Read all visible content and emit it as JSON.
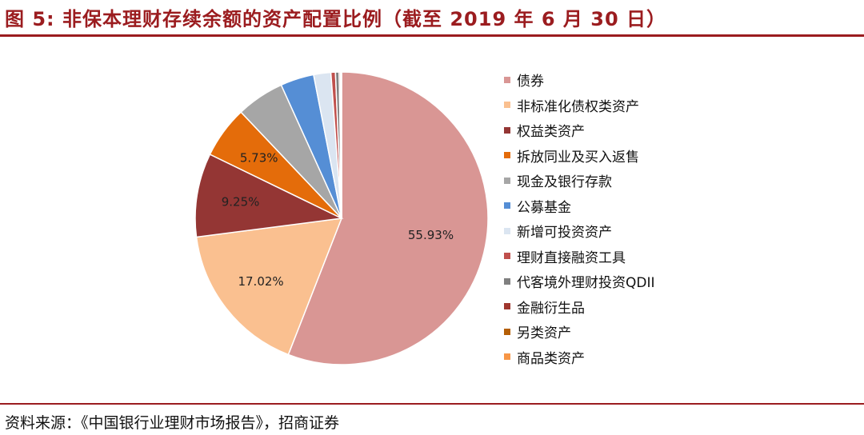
{
  "header": {
    "title": "图 5: 非保本理财存续余额的资产配置比例（截至 2019 年 6 月 30 日）"
  },
  "footer": {
    "source": "资料来源：《中国银行业理财市场报告》，招商证券"
  },
  "chart_data": {
    "type": "pie",
    "title": "图 5: 非保本理财存续余额的资产配置比例（截至 2019 年 6 月 30 日）",
    "legend_position": "right",
    "start_angle_deg": 0,
    "direction": "clockwise",
    "slices": [
      {
        "name": "债券",
        "value": 55.93,
        "label": "55.93%",
        "color": "#d99694"
      },
      {
        "name": "非标准化债权类资产",
        "value": 17.02,
        "label": "17.02%",
        "color": "#fac090"
      },
      {
        "name": "权益类资产",
        "value": 9.25,
        "label": "9.25%",
        "color": "#943634"
      },
      {
        "name": "拆放同业及买入返售",
        "value": 5.73,
        "label": "5.73%",
        "color": "#e46c0a"
      },
      {
        "name": "现金及银行存款",
        "value": 5.3,
        "label": "",
        "color": "#a6a6a6"
      },
      {
        "name": "公募基金",
        "value": 3.7,
        "label": "",
        "color": "#558ed5"
      },
      {
        "name": "新增可投资资产",
        "value": 1.9,
        "label": "",
        "color": "#dbe5f1"
      },
      {
        "name": "理财直接融资工具",
        "value": 0.5,
        "label": "",
        "color": "#c0504d"
      },
      {
        "name": "代客境外理财投资QDII",
        "value": 0.4,
        "label": "",
        "color": "#7f7f7f"
      },
      {
        "name": "金融衍生品",
        "value": 0.15,
        "label": "",
        "color": "#a0372f"
      },
      {
        "name": "另类资产",
        "value": 0.08,
        "label": "",
        "color": "#b45f06"
      },
      {
        "name": "商品类资产",
        "value": 0.04,
        "label": "",
        "color": "#f79646"
      }
    ]
  }
}
